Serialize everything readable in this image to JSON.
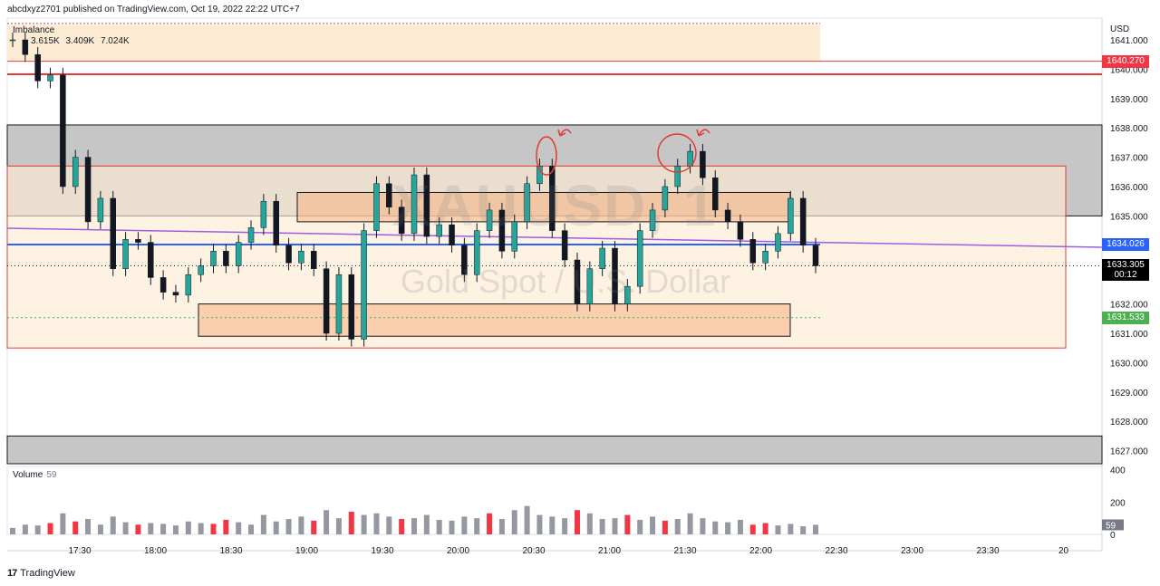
{
  "header": {
    "text": "abcdxyz2701 published on TradingView.com, Oct 19, 2022 22:22 UTC+7"
  },
  "watermark": {
    "symbol": "XAUUSD, 1",
    "description": "Gold Spot / U.S. Dollar"
  },
  "legend": {
    "indicator": "Imbalance",
    "values": [
      {
        "text": "3.615K",
        "color": "#2962ff"
      },
      {
        "text": "3.409K",
        "color": "#ff9800"
      },
      {
        "text": "7.024K",
        "color": "#131722"
      }
    ]
  },
  "volume_legend": {
    "label": "Volume",
    "value": "59"
  },
  "axis": {
    "currency": "USD"
  },
  "price_badges": [
    {
      "text": "1640.270",
      "price": 1640.27,
      "bg": "#f23645"
    },
    {
      "text": "1634.026",
      "price": 1634.026,
      "bg": "#2962ff"
    },
    {
      "text": "1633.305",
      "price": 1633.305,
      "bg": "#000000"
    },
    {
      "text": "1631.533",
      "price": 1631.533,
      "bg": "#4caf50"
    }
  ],
  "countdown": "00:12",
  "volume_badge": {
    "text": "59",
    "value": 59
  },
  "footer": {
    "logo_text": "17",
    "brand": "TradingView"
  },
  "colors": {
    "up": "#26a69a",
    "down": "#131722",
    "vol_up": "#9598a1",
    "vol_down": "#f23645",
    "zone_red": "#e53935",
    "zone_fill": "#fdebd3",
    "grey_zone": "#c6c6c6"
  },
  "chart_data": {
    "type": "candlestick",
    "symbol": "XAUUSD, 1",
    "title": "Gold Spot / U.S. Dollar",
    "ylim": [
      1626.5,
      1641.5
    ],
    "y_ticks": [
      "1641.000",
      "1640.000",
      "1639.000",
      "1638.000",
      "1637.000",
      "1636.000",
      "1635.000",
      "1634.000",
      "1633.000",
      "1632.000",
      "1631.000",
      "1630.000",
      "1629.000",
      "1628.000",
      "1627.000"
    ],
    "x_ticks": [
      "17:30",
      "18:00",
      "18:30",
      "19:00",
      "19:30",
      "20:00",
      "20:30",
      "21:00",
      "21:30",
      "22:00",
      "22:30",
      "23:00",
      "23:30",
      "20"
    ],
    "volume_ticks": [
      "400",
      "200",
      "0"
    ],
    "series_close": [
      1641.0,
      1640.5,
      1639.6,
      1639.8,
      1636.0,
      1637.0,
      1634.8,
      1635.6,
      1633.2,
      1634.2,
      1634.1,
      1632.9,
      1632.4,
      1632.3,
      1633.0,
      1633.3,
      1633.8,
      1633.3,
      1634.1,
      1634.6,
      1635.5,
      1634.0,
      1633.4,
      1633.8,
      1633.2,
      1631.0,
      1633.0,
      1630.8,
      1634.5,
      1636.1,
      1635.3,
      1634.4,
      1636.4,
      1634.3,
      1634.7,
      1634.0,
      1633.0,
      1634.5,
      1635.2,
      1633.8,
      1634.8,
      1636.1,
      1636.7,
      1634.5,
      1633.5,
      1632.0,
      1633.2,
      1633.9,
      1632.0,
      1632.6,
      1634.5,
      1635.2,
      1636.0,
      1636.7,
      1637.2,
      1636.3,
      1635.2,
      1634.8,
      1634.2,
      1633.4,
      1633.8,
      1634.4,
      1635.6,
      1634.0,
      1633.3
    ],
    "volume_values": [
      40,
      60,
      55,
      70,
      130,
      80,
      95,
      60,
      110,
      75,
      60,
      70,
      65,
      55,
      80,
      70,
      65,
      90,
      75,
      60,
      120,
      80,
      95,
      110,
      85,
      150,
      100,
      140,
      120,
      130,
      110,
      95,
      100,
      120,
      90,
      85,
      110,
      100,
      130,
      95,
      150,
      175,
      120,
      110,
      100,
      150,
      130,
      95,
      100,
      120,
      90,
      110,
      85,
      95,
      130,
      100,
      80,
      75,
      90,
      60,
      70,
      55,
      65,
      50,
      59
    ],
    "horizontal_levels": [
      {
        "label": "1640.270",
        "value": 1640.27
      },
      {
        "label": "1631.533",
        "value": 1631.533
      }
    ],
    "zones": [
      {
        "label": "grey supply",
        "from": 1635.0,
        "to": 1638.1
      },
      {
        "label": "red range",
        "from": 1630.5,
        "to": 1636.7
      },
      {
        "label": "upper imbalance",
        "from": 1634.8,
        "to": 1635.8
      },
      {
        "label": "lower imbalance",
        "from": 1630.9,
        "to": 1632.0
      },
      {
        "label": "grey demand",
        "from": 1626.5,
        "to": 1627.5
      },
      {
        "label": "top zone",
        "from": 1640.3,
        "to": 1641.5
      }
    ],
    "last_price": 1633.305
  }
}
